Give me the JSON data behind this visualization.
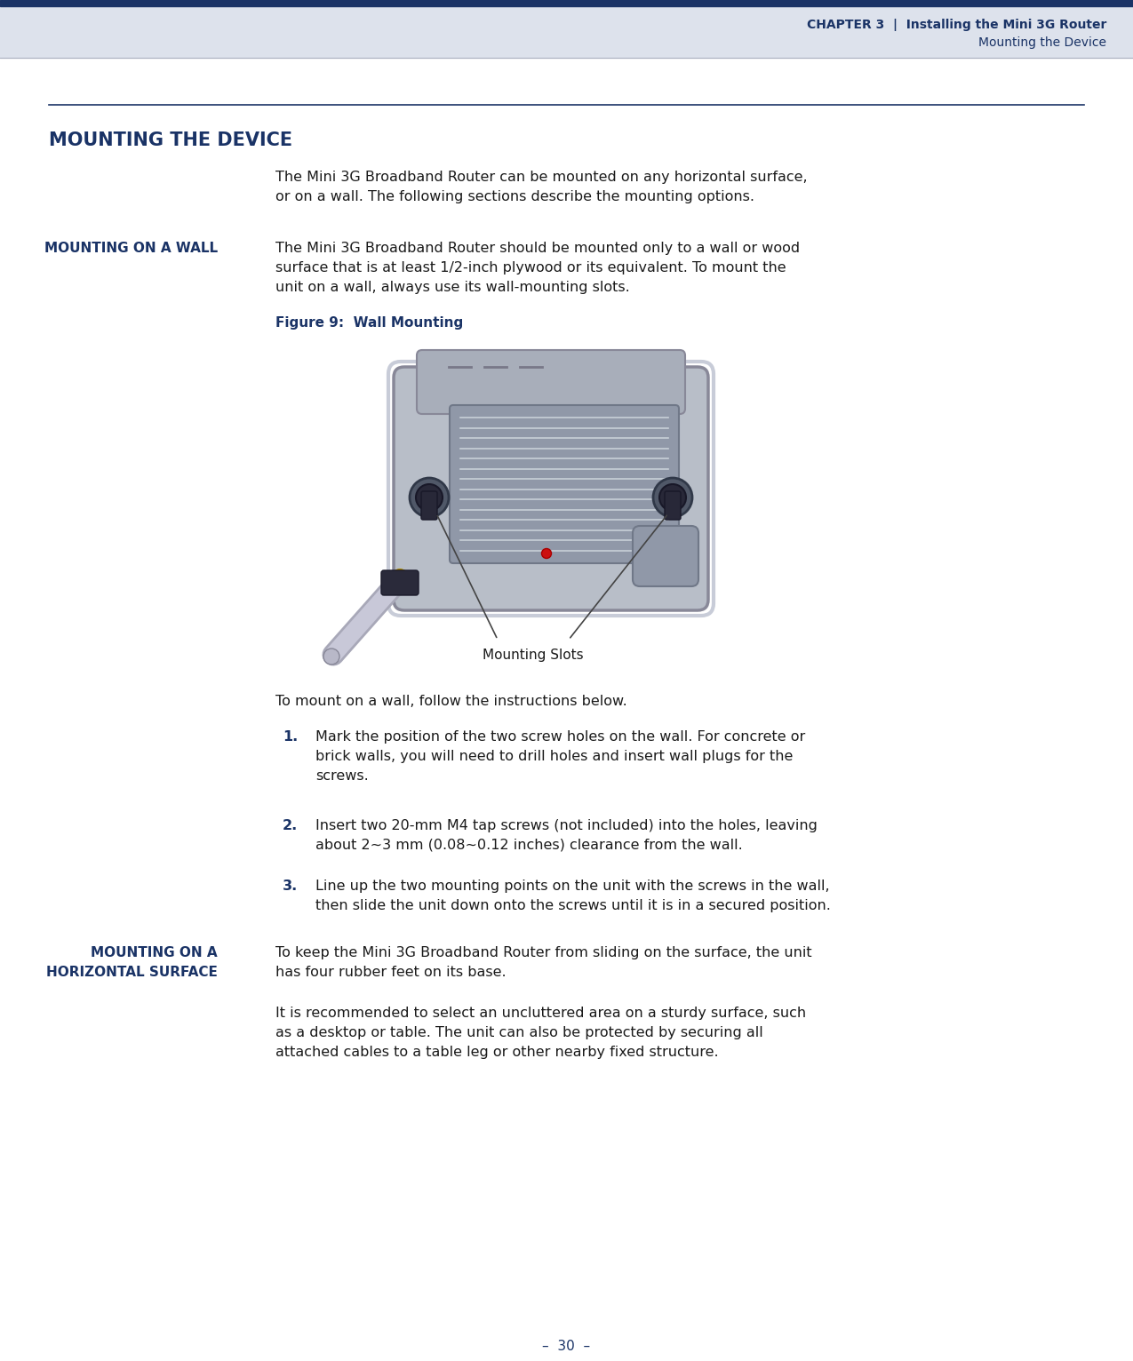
{
  "header_bar_color": "#1a3366",
  "header_bg_color": "#dde2ec",
  "header_text_color": "#1a3366",
  "dark_blue": "#1a3366",
  "body_text_color": "#1a1a1a",
  "page_bg_color": "#ffffff",
  "figure_caption_color": "#1a3366",
  "step_num_color": "#1a3366",
  "page_number": "–  30  –",
  "header_line1": "CHAPTER 3  |  Installing the Mini 3G Router",
  "header_line2": "Mounting the Device",
  "section_title": "MOUNTING THE DEVICE",
  "intro_text": "The Mini 3G Broadband Router can be mounted on any horizontal surface,\nor on a wall. The following sections describe the mounting options.",
  "sub1_title": "MOUNTING ON A WALL",
  "sub1_text": "The Mini 3G Broadband Router should be mounted only to a wall or wood\nsurface that is at least 1/2-inch plywood or its equivalent. To mount the\nunit on a wall, always use its wall-mounting slots.",
  "figure_caption": "Figure 9:  Wall Mounting",
  "mounting_label": "Mounting Slots",
  "wall_intro": "To mount on a wall, follow the instructions below.",
  "step1_num": "1.",
  "step1_text": "Mark the position of the two screw holes on the wall. For concrete or\nbrick walls, you will need to drill holes and insert wall plugs for the\nscrews.",
  "step2_num": "2.",
  "step2_text": "Insert two 20-mm M4 tap screws (not included) into the holes, leaving\nabout 2~3 mm (0.08~0.12 inches) clearance from the wall.",
  "step3_num": "3.",
  "step3_text": "Line up the two mounting points on the unit with the screws in the wall,\nthen slide the unit down onto the screws until it is in a secured position.",
  "sub2_title1": "MOUNTING ON A",
  "sub2_title2": "HORIZONTAL SURFACE",
  "sub2_text1": "To keep the Mini 3G Broadband Router from sliding on the surface, the unit\nhas four rubber feet on its base.",
  "sub2_text2": "It is recommended to select an uncluttered area on a sturdy surface, such\nas a desktop or table. The unit can also be protected by securing all\nattached cables to a table leg or other nearby fixed structure."
}
